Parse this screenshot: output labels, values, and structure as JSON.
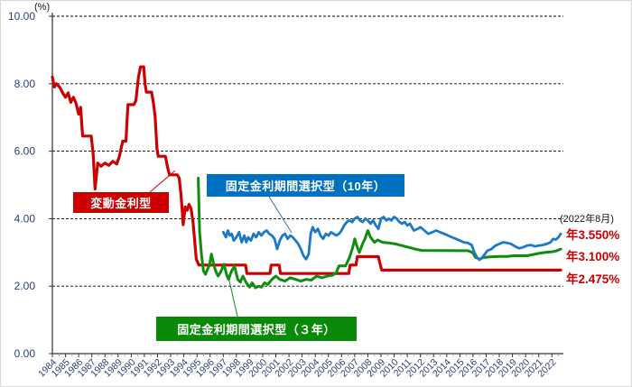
{
  "colors": {
    "variable_red": "#CC0000",
    "fixed10_blue_line": "#1B79C8",
    "fixed10_blue_box": "#0070C0",
    "fixed3_green_line": "#0E8E0E",
    "fixed3_green_box": "#088A08",
    "axis_label_navy": "#2B3F74"
  },
  "chart_data": {
    "type": "line",
    "title": "",
    "unit": "(%)",
    "grid": true,
    "y_axis": {
      "min": 0,
      "max": 10,
      "ticks": [
        {
          "value": 0,
          "label": "0.00"
        },
        {
          "value": 2,
          "label": "2.00"
        },
        {
          "value": 4,
          "label": "4.00"
        },
        {
          "value": 6,
          "label": "6.00"
        },
        {
          "value": 8,
          "label": "8.00"
        },
        {
          "value": 10,
          "label": "10.00"
        }
      ]
    },
    "x_axis": {
      "start": 1984,
      "end": 2022.7,
      "years": [
        1984,
        1985,
        1986,
        1987,
        1988,
        1989,
        1990,
        1991,
        1992,
        1993,
        1994,
        1995,
        1996,
        1997,
        1998,
        1999,
        2000,
        2001,
        2002,
        2003,
        2004,
        2005,
        2006,
        2007,
        2008,
        2009,
        2010,
        2011,
        2012,
        2013,
        2014,
        2015,
        2016,
        2017,
        2018,
        2019,
        2020,
        2021,
        2022
      ]
    },
    "series": [
      {
        "name": "変動金利型",
        "color": "#CC0000",
        "width": 3.2,
        "points": [
          [
            1984.0,
            8.2
          ],
          [
            1984.15,
            7.9
          ],
          [
            1984.3,
            8.0
          ],
          [
            1984.55,
            7.9
          ],
          [
            1984.8,
            7.72
          ],
          [
            1985.0,
            7.6
          ],
          [
            1985.2,
            7.73
          ],
          [
            1985.4,
            7.45
          ],
          [
            1985.6,
            7.6
          ],
          [
            1985.8,
            7.42
          ],
          [
            1986.0,
            7.1
          ],
          [
            1986.15,
            7.3
          ],
          [
            1986.3,
            6.45
          ],
          [
            1986.95,
            6.45
          ],
          [
            1987.1,
            5.95
          ],
          [
            1987.25,
            4.88
          ],
          [
            1987.45,
            5.65
          ],
          [
            1987.7,
            5.55
          ],
          [
            1988.0,
            5.65
          ],
          [
            1988.3,
            5.58
          ],
          [
            1988.6,
            5.7
          ],
          [
            1988.9,
            5.62
          ],
          [
            1989.1,
            5.85
          ],
          [
            1989.35,
            6.3
          ],
          [
            1989.6,
            6.3
          ],
          [
            1989.75,
            7.38
          ],
          [
            1990.2,
            7.38
          ],
          [
            1990.35,
            7.5
          ],
          [
            1990.55,
            8.2
          ],
          [
            1990.7,
            8.5
          ],
          [
            1990.95,
            8.5
          ],
          [
            1991.05,
            8.0
          ],
          [
            1991.15,
            7.75
          ],
          [
            1991.55,
            7.75
          ],
          [
            1991.7,
            7.4
          ],
          [
            1991.82,
            7.0
          ],
          [
            1991.95,
            6.1
          ],
          [
            1992.05,
            5.85
          ],
          [
            1992.6,
            5.85
          ],
          [
            1992.75,
            5.55
          ],
          [
            1992.9,
            5.3
          ],
          [
            1993.5,
            5.3
          ],
          [
            1993.65,
            5.2
          ],
          [
            1993.8,
            4.65
          ],
          [
            1993.95,
            3.82
          ],
          [
            1994.1,
            4.35
          ],
          [
            1994.25,
            4.25
          ],
          [
            1994.4,
            4.42
          ],
          [
            1994.55,
            4.3
          ],
          [
            1994.7,
            3.9
          ],
          [
            1994.95,
            2.8
          ],
          [
            1995.15,
            2.625
          ],
          [
            1998.7,
            2.625
          ],
          [
            1998.8,
            2.375
          ],
          [
            2000.55,
            2.375
          ],
          [
            2000.65,
            2.625
          ],
          [
            2001.25,
            2.625
          ],
          [
            2001.35,
            2.375
          ],
          [
            2006.55,
            2.375
          ],
          [
            2006.65,
            2.625
          ],
          [
            2007.1,
            2.625
          ],
          [
            2007.2,
            2.875
          ],
          [
            2008.8,
            2.875
          ],
          [
            2008.95,
            2.625
          ],
          [
            2009.05,
            2.475
          ],
          [
            2022.67,
            2.475
          ]
        ]
      },
      {
        "name": "固定金利期間選択型（３年）",
        "color": "#0E8E0E",
        "width": 3,
        "points": [
          [
            1995.1,
            5.2
          ],
          [
            1995.2,
            3.6
          ],
          [
            1995.35,
            2.9
          ],
          [
            1995.5,
            2.45
          ],
          [
            1995.65,
            2.35
          ],
          [
            1995.8,
            2.5
          ],
          [
            1995.95,
            2.62
          ],
          [
            1996.1,
            2.95
          ],
          [
            1996.3,
            2.6
          ],
          [
            1996.45,
            2.42
          ],
          [
            1996.6,
            2.3
          ],
          [
            1996.8,
            2.42
          ],
          [
            1997.05,
            2.65
          ],
          [
            1997.25,
            2.35
          ],
          [
            1997.4,
            2.2
          ],
          [
            1997.6,
            2.42
          ],
          [
            1997.85,
            2.6
          ],
          [
            1998.1,
            2.2
          ],
          [
            1998.3,
            2.12
          ],
          [
            1998.5,
            2.3
          ],
          [
            1998.75,
            2.1
          ],
          [
            1999.0,
            1.97
          ],
          [
            1999.2,
            2.1
          ],
          [
            1999.45,
            1.95
          ],
          [
            1999.7,
            2.0
          ],
          [
            1999.9,
            1.97
          ],
          [
            2000.15,
            2.1
          ],
          [
            2000.4,
            2.05
          ],
          [
            2000.7,
            2.2
          ],
          [
            2001.0,
            2.3
          ],
          [
            2001.3,
            2.2
          ],
          [
            2001.7,
            2.15
          ],
          [
            2002.1,
            2.25
          ],
          [
            2002.5,
            2.2
          ],
          [
            2002.9,
            2.15
          ],
          [
            2003.3,
            2.2
          ],
          [
            2003.7,
            2.18
          ],
          [
            2004.1,
            2.3
          ],
          [
            2004.5,
            2.25
          ],
          [
            2004.9,
            2.3
          ],
          [
            2005.3,
            2.32
          ],
          [
            2005.6,
            2.4
          ],
          [
            2005.8,
            2.6
          ],
          [
            2006.3,
            2.6
          ],
          [
            2006.6,
            2.85
          ],
          [
            2006.85,
            3.15
          ],
          [
            2007.0,
            3.4
          ],
          [
            2007.15,
            3.2
          ],
          [
            2007.35,
            3.0
          ],
          [
            2007.6,
            3.25
          ],
          [
            2007.8,
            3.42
          ],
          [
            2008.0,
            3.65
          ],
          [
            2008.2,
            3.45
          ],
          [
            2008.5,
            3.3
          ],
          [
            2008.75,
            3.37
          ],
          [
            2009.1,
            3.3
          ],
          [
            2009.6,
            3.28
          ],
          [
            2010.1,
            3.25
          ],
          [
            2010.6,
            3.2
          ],
          [
            2011.1,
            3.15
          ],
          [
            2011.6,
            3.1
          ],
          [
            2012.1,
            3.06
          ],
          [
            2015.6,
            3.05
          ],
          [
            2015.95,
            3.0
          ],
          [
            2016.2,
            2.85
          ],
          [
            2016.5,
            2.8
          ],
          [
            2016.8,
            2.85
          ],
          [
            2017.3,
            2.87
          ],
          [
            2018.0,
            2.88
          ],
          [
            2018.6,
            2.88
          ],
          [
            2019.1,
            2.9
          ],
          [
            2019.6,
            2.9
          ],
          [
            2020.1,
            2.9
          ],
          [
            2020.5,
            2.93
          ],
          [
            2021.0,
            2.97
          ],
          [
            2021.5,
            3.0
          ],
          [
            2022.0,
            3.02
          ],
          [
            2022.3,
            3.04
          ],
          [
            2022.67,
            3.1
          ]
        ]
      },
      {
        "name": "固定金利期間選択型（10年）",
        "color": "#1B79C8",
        "width": 2.8,
        "points": [
          [
            1997.0,
            3.6
          ],
          [
            1997.2,
            3.45
          ],
          [
            1997.35,
            3.65
          ],
          [
            1997.5,
            3.5
          ],
          [
            1997.65,
            3.55
          ],
          [
            1997.8,
            3.35
          ],
          [
            1998.0,
            3.45
          ],
          [
            1998.2,
            3.6
          ],
          [
            1998.4,
            3.3
          ],
          [
            1998.6,
            3.5
          ],
          [
            1998.75,
            3.3
          ],
          [
            1998.9,
            3.45
          ],
          [
            1999.1,
            3.35
          ],
          [
            1999.3,
            3.55
          ],
          [
            1999.5,
            3.45
          ],
          [
            1999.7,
            3.6
          ],
          [
            1999.9,
            3.5
          ],
          [
            2000.1,
            3.6
          ],
          [
            2000.3,
            3.65
          ],
          [
            2000.5,
            3.55
          ],
          [
            2000.7,
            3.5
          ],
          [
            2000.9,
            3.4
          ],
          [
            2001.1,
            3.1
          ],
          [
            2001.3,
            3.35
          ],
          [
            2001.5,
            3.5
          ],
          [
            2001.7,
            3.55
          ],
          [
            2001.9,
            3.4
          ],
          [
            2002.1,
            3.5
          ],
          [
            2002.3,
            3.45
          ],
          [
            2002.5,
            3.35
          ],
          [
            2002.7,
            3.25
          ],
          [
            2002.9,
            3.1
          ],
          [
            2003.1,
            2.9
          ],
          [
            2003.3,
            2.8
          ],
          [
            2003.5,
            2.95
          ],
          [
            2003.65,
            3.55
          ],
          [
            2003.8,
            3.75
          ],
          [
            2004.0,
            3.6
          ],
          [
            2004.2,
            3.7
          ],
          [
            2004.4,
            3.5
          ],
          [
            2004.6,
            3.4
          ],
          [
            2004.8,
            3.55
          ],
          [
            2005.0,
            3.5
          ],
          [
            2005.2,
            3.6
          ],
          [
            2005.4,
            3.55
          ],
          [
            2005.6,
            3.5
          ],
          [
            2005.8,
            3.55
          ],
          [
            2006.0,
            3.65
          ],
          [
            2006.2,
            3.8
          ],
          [
            2006.4,
            3.9
          ],
          [
            2006.6,
            3.95
          ],
          [
            2006.8,
            3.9
          ],
          [
            2007.0,
            4.0
          ],
          [
            2007.2,
            4.05
          ],
          [
            2007.4,
            3.95
          ],
          [
            2007.6,
            3.9
          ],
          [
            2007.8,
            4.0
          ],
          [
            2008.0,
            3.95
          ],
          [
            2008.2,
            3.85
          ],
          [
            2008.4,
            3.95
          ],
          [
            2008.6,
            3.8
          ],
          [
            2008.8,
            3.7
          ],
          [
            2009.0,
            4.0
          ],
          [
            2009.2,
            4.05
          ],
          [
            2009.4,
            3.95
          ],
          [
            2009.6,
            4.0
          ],
          [
            2009.8,
            3.95
          ],
          [
            2010.0,
            4.05
          ],
          [
            2010.2,
            4.0
          ],
          [
            2010.4,
            3.9
          ],
          [
            2010.6,
            3.85
          ],
          [
            2010.8,
            3.9
          ],
          [
            2011.0,
            3.8
          ],
          [
            2011.2,
            3.85
          ],
          [
            2011.5,
            3.65
          ],
          [
            2011.8,
            3.7
          ],
          [
            2012.0,
            3.75
          ],
          [
            2012.3,
            3.65
          ],
          [
            2012.6,
            3.55
          ],
          [
            2012.9,
            3.6
          ],
          [
            2013.2,
            3.65
          ],
          [
            2013.5,
            3.6
          ],
          [
            2013.8,
            3.55
          ],
          [
            2014.1,
            3.5
          ],
          [
            2014.4,
            3.45
          ],
          [
            2014.7,
            3.4
          ],
          [
            2015.0,
            3.35
          ],
          [
            2015.3,
            3.3
          ],
          [
            2015.6,
            3.28
          ],
          [
            2015.9,
            3.22
          ],
          [
            2016.1,
            3.0
          ],
          [
            2016.3,
            2.85
          ],
          [
            2016.5,
            2.78
          ],
          [
            2016.7,
            2.85
          ],
          [
            2016.9,
            2.95
          ],
          [
            2017.1,
            3.05
          ],
          [
            2017.4,
            3.1
          ],
          [
            2017.7,
            3.2
          ],
          [
            2018.0,
            3.25
          ],
          [
            2018.3,
            3.3
          ],
          [
            2018.6,
            3.28
          ],
          [
            2018.9,
            3.25
          ],
          [
            2019.2,
            3.18
          ],
          [
            2019.5,
            3.12
          ],
          [
            2019.8,
            3.15
          ],
          [
            2020.1,
            3.2
          ],
          [
            2020.4,
            3.22
          ],
          [
            2020.7,
            3.18
          ],
          [
            2021.0,
            3.2
          ],
          [
            2021.3,
            3.22
          ],
          [
            2021.6,
            3.25
          ],
          [
            2021.9,
            3.3
          ],
          [
            2022.1,
            3.4
          ],
          [
            2022.3,
            3.38
          ],
          [
            2022.5,
            3.45
          ],
          [
            2022.67,
            3.55
          ]
        ]
      }
    ],
    "annotations": {
      "variable": {
        "label": "変動金利型",
        "bg": "#CC0000"
      },
      "fixed10": {
        "label": "固定金利期間選択型（10年）",
        "bg": "#0070C0"
      },
      "fixed3": {
        "label": "固定金利期間選択型（３年）",
        "bg": "#088A08"
      },
      "right": {
        "date": "(2022年8月)",
        "rate_10y": "年3.550%",
        "rate_3y": "年3.100%",
        "rate_var": "年2.475%",
        "rate_color": "#CC0000"
      }
    }
  }
}
